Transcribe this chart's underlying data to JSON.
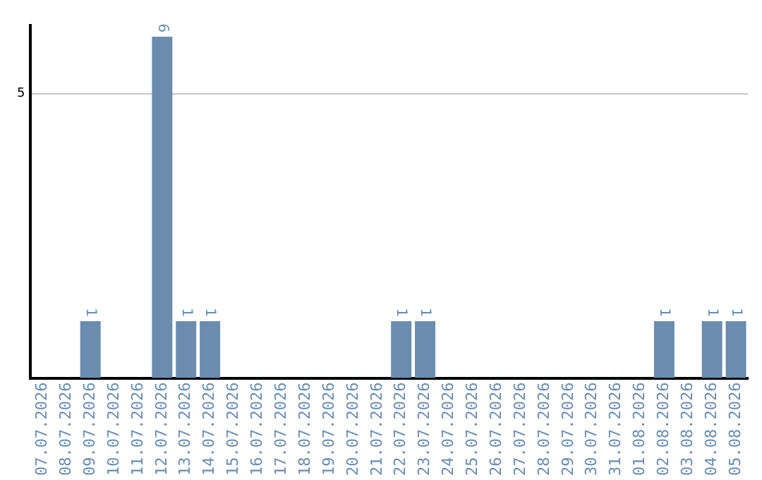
{
  "chart_data": {
    "type": "bar",
    "categories": [
      "07.07.2026",
      "08.07.2026",
      "09.07.2026",
      "10.07.2026",
      "11.07.2026",
      "12.07.2026",
      "13.07.2026",
      "14.07.2026",
      "15.07.2026",
      "16.07.2026",
      "17.07.2026",
      "18.07.2026",
      "19.07.2026",
      "20.07.2026",
      "21.07.2026",
      "22.07.2026",
      "23.07.2026",
      "24.07.2026",
      "25.07.2026",
      "26.07.2026",
      "27.07.2026",
      "28.07.2026",
      "29.07.2026",
      "30.07.2026",
      "31.07.2026",
      "01.08.2026",
      "02.08.2026",
      "03.08.2026",
      "04.08.2026",
      "05.08.2026"
    ],
    "values": [
      0,
      0,
      1,
      0,
      0,
      6,
      1,
      1,
      0,
      0,
      0,
      0,
      0,
      0,
      0,
      1,
      1,
      0,
      0,
      0,
      0,
      0,
      0,
      0,
      0,
      0,
      1,
      0,
      1,
      1
    ],
    "value_labels": [
      null,
      null,
      "1",
      null,
      null,
      "6",
      "1",
      "1",
      null,
      null,
      null,
      null,
      null,
      null,
      null,
      "1",
      "1",
      null,
      null,
      null,
      null,
      null,
      null,
      null,
      null,
      null,
      "1",
      null,
      "1",
      "1"
    ],
    "color": "#6a8caf",
    "ylim": [
      0,
      6.2
    ],
    "yticks": [
      5
    ],
    "grid": "y",
    "legend": false
  }
}
